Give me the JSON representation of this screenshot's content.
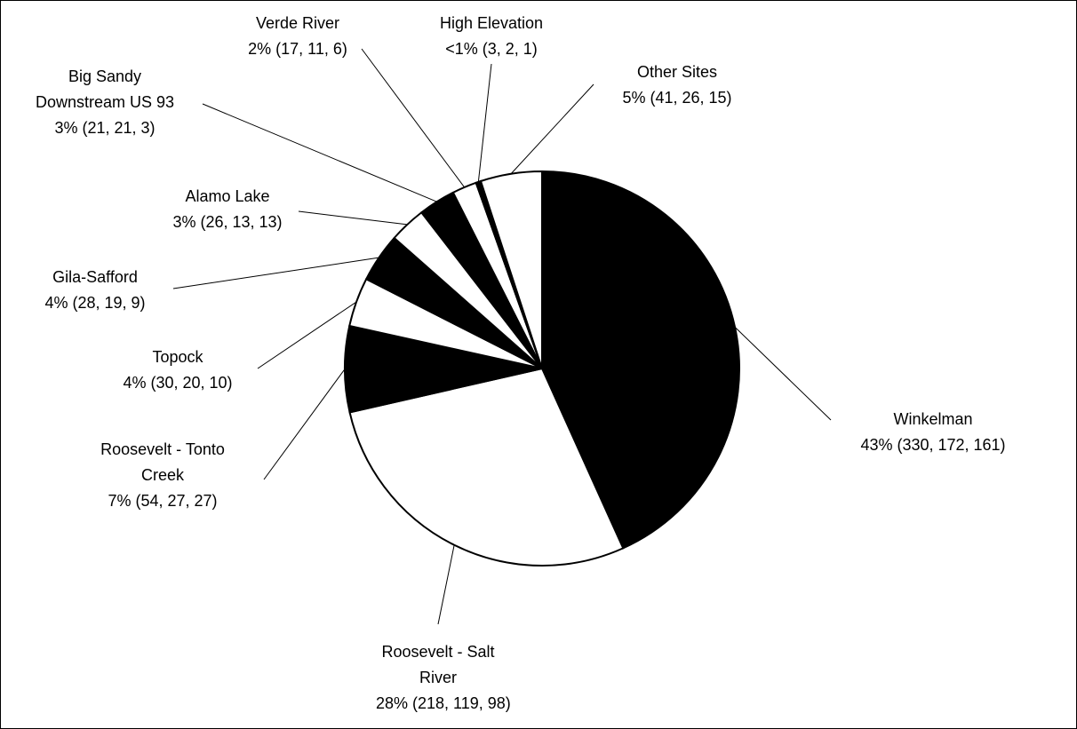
{
  "chart_data": {
    "type": "pie",
    "categories": [
      "Winkelman",
      "Roosevelt - Salt River",
      "Roosevelt - Tonto Creek",
      "Topock",
      "Gila-Safford",
      "Alamo Lake",
      "Big Sandy Downstream US 93",
      "Verde River",
      "High Elevation",
      "Other Sites"
    ],
    "values": [
      43,
      28,
      7,
      4,
      4,
      3,
      3,
      2,
      0.4,
      5
    ],
    "value_labels": [
      "43% (330, 172, 161)",
      "28% (218, 119, 98)",
      "7% (54, 27, 27)",
      "4% (30, 20, 10)",
      "4% (28, 19, 9)",
      "3% (26, 13, 13)",
      "3% (21, 21, 3)",
      "2% (17, 11, 6)",
      "<1% (3, 2, 1)",
      "5% (41, 26, 15)"
    ],
    "colors": [
      "#000000",
      "#ffffff",
      "#000000",
      "#ffffff",
      "#000000",
      "#ffffff",
      "#000000",
      "#ffffff",
      "#000000",
      "#ffffff"
    ]
  }
}
